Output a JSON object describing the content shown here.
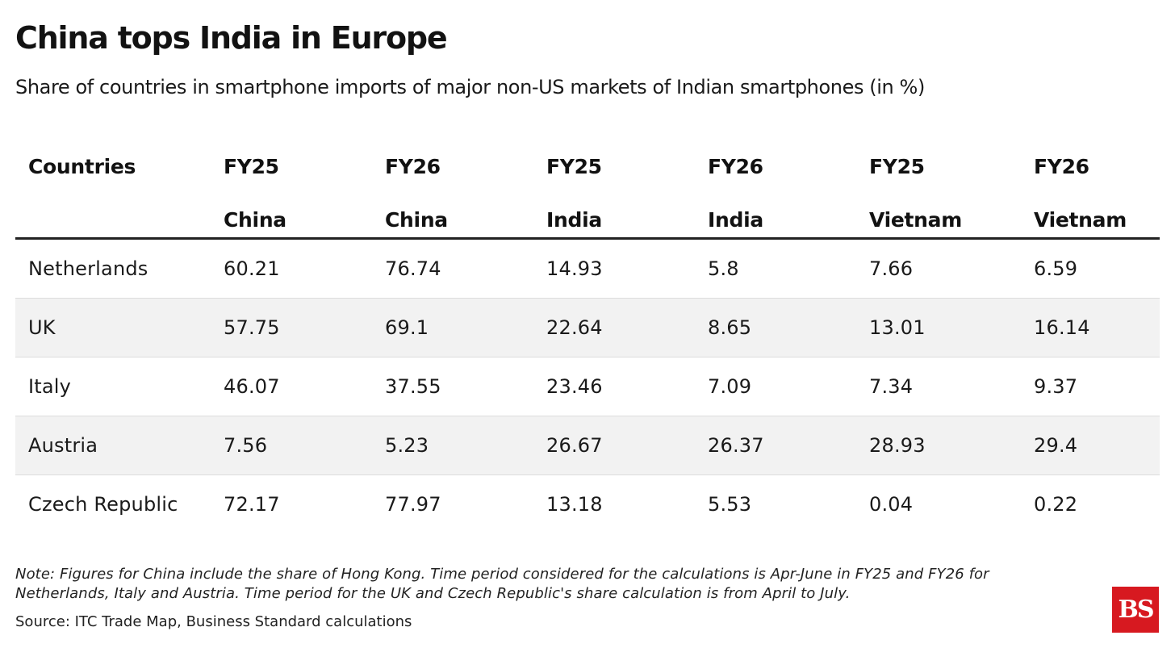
{
  "title": "China tops India in Europe",
  "subtitle": "Share of countries in smartphone imports of major non-US markets of Indian smartphones (in %)",
  "note": "Note: Figures for China include the share of Hong Kong. Time period considered for the calculations is Apr-June in FY25 and FY26 for Netherlands, Italy and Austria. Time period for the UK and Czech Republic's share calculation is from April to July.",
  "source": "Source: ITC Trade Map, Business Standard calculations",
  "logo_text": "BS",
  "colors": {
    "logo_bg": "#d71920",
    "alt_row_bg": "#f2f2f2",
    "header_rule": "#222222"
  },
  "chart_data": {
    "type": "table",
    "title": "China tops India in Europe",
    "subtitle": "Share of countries in smartphone imports of major non-US markets of Indian smartphones (in %)",
    "columns": [
      "Countries",
      "FY25\nChina",
      "FY26\nChina",
      "FY25\nIndia",
      "FY26\nIndia",
      "FY25\nVietnam",
      "FY26\nVietnam"
    ],
    "rows": [
      [
        "Netherlands",
        "60.21",
        "76.74",
        "14.93",
        "5.8",
        "7.66",
        "6.59"
      ],
      [
        "UK",
        "57.75",
        "69.1",
        "22.64",
        "8.65",
        "13.01",
        "16.14"
      ],
      [
        "Italy",
        "46.07",
        "37.55",
        "23.46",
        "7.09",
        "7.34",
        "9.37"
      ],
      [
        "Austria",
        "7.56",
        "5.23",
        "26.67",
        "26.37",
        "28.93",
        "29.4"
      ],
      [
        "Czech Republic",
        "72.17",
        "77.97",
        "13.18",
        "5.53",
        "0.04",
        "0.22"
      ]
    ]
  }
}
